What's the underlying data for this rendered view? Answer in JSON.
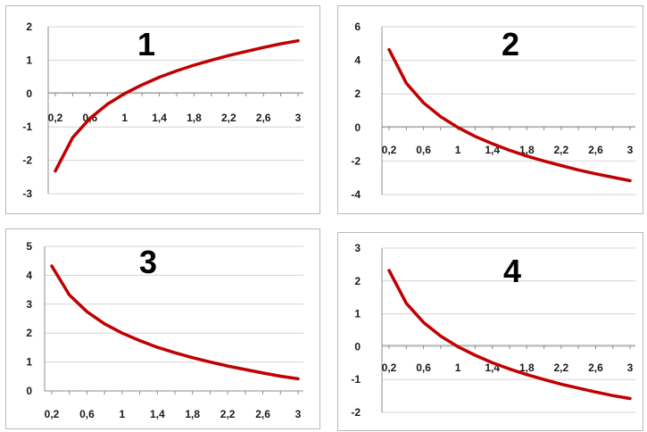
{
  "chart_data": [
    {
      "type": "line",
      "title": "1",
      "x": [
        0.2,
        0.4,
        0.6,
        0.8,
        1.0,
        1.2,
        1.4,
        1.6,
        1.8,
        2.0,
        2.2,
        2.4,
        2.6,
        2.8,
        3.0
      ],
      "x_ticks": [
        "0,2",
        "0,6",
        "1",
        "1,4",
        "1,8",
        "2,2",
        "2,6",
        "3"
      ],
      "y_ticks": [
        "-3",
        "-2",
        "-1",
        "0",
        "1",
        "2"
      ],
      "ylim": [
        -3,
        2
      ],
      "series": [
        {
          "values": [
            -2.32,
            -1.32,
            -0.74,
            -0.32,
            0.0,
            0.26,
            0.49,
            0.68,
            0.85,
            1.0,
            1.14,
            1.26,
            1.38,
            1.49,
            1.58
          ]
        }
      ],
      "color": "#c00000",
      "grid": true
    },
    {
      "type": "line",
      "title": "2",
      "x": [
        0.2,
        0.4,
        0.6,
        0.8,
        1.0,
        1.2,
        1.4,
        1.6,
        1.8,
        2.0,
        2.2,
        2.4,
        2.6,
        2.8,
        3.0
      ],
      "x_ticks": [
        "0,2",
        "0,6",
        "1",
        "1,4",
        "1,8",
        "2,2",
        "2,6",
        "3"
      ],
      "y_ticks": [
        "-4",
        "-2",
        "0",
        "2",
        "4",
        "6"
      ],
      "ylim": [
        -4,
        6
      ],
      "series": [
        {
          "values": [
            4.64,
            2.64,
            1.47,
            0.64,
            0.0,
            -0.53,
            -0.97,
            -1.36,
            -1.7,
            -2.0,
            -2.27,
            -2.53,
            -2.76,
            -2.97,
            -3.17
          ]
        }
      ],
      "color": "#c00000",
      "grid": true
    },
    {
      "type": "line",
      "title": "3",
      "x": [
        0.2,
        0.4,
        0.6,
        0.8,
        1.0,
        1.2,
        1.4,
        1.6,
        1.8,
        2.0,
        2.2,
        2.4,
        2.6,
        2.8,
        3.0
      ],
      "x_ticks": [
        "0,2",
        "0,6",
        "1",
        "1,4",
        "1,8",
        "2,2",
        "2,6",
        "3"
      ],
      "y_ticks": [
        "0",
        "1",
        "2",
        "3",
        "4",
        "5"
      ],
      "ylim": [
        0,
        5
      ],
      "series": [
        {
          "values": [
            4.32,
            3.32,
            2.74,
            2.32,
            2.0,
            1.74,
            1.51,
            1.32,
            1.15,
            1.0,
            0.86,
            0.74,
            0.62,
            0.51,
            0.42
          ]
        }
      ],
      "color": "#c00000",
      "grid": true
    },
    {
      "type": "line",
      "title": "4",
      "x": [
        0.2,
        0.4,
        0.6,
        0.8,
        1.0,
        1.2,
        1.4,
        1.6,
        1.8,
        2.0,
        2.2,
        2.4,
        2.6,
        2.8,
        3.0
      ],
      "x_ticks": [
        "0,2",
        "0,6",
        "1",
        "1,4",
        "1,8",
        "2,2",
        "2,6",
        "3"
      ],
      "y_ticks": [
        "-2",
        "-1",
        "0",
        "1",
        "2",
        "3"
      ],
      "ylim": [
        -2,
        3
      ],
      "series": [
        {
          "values": [
            2.32,
            1.32,
            0.74,
            0.32,
            0.0,
            -0.26,
            -0.49,
            -0.68,
            -0.85,
            -1.0,
            -1.14,
            -1.26,
            -1.38,
            -1.49,
            -1.58
          ]
        }
      ],
      "color": "#c00000",
      "grid": true
    }
  ]
}
